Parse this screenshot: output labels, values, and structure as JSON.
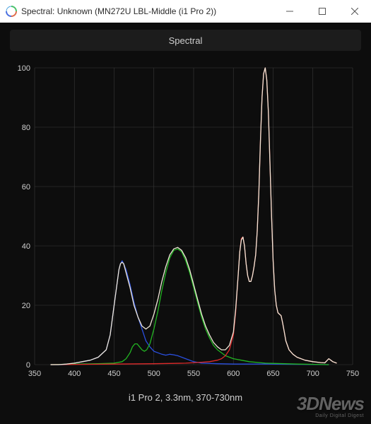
{
  "window": {
    "title": "Spectral: Unknown (MN272U LBL-Middle (i1 Pro 2))"
  },
  "tabs": {
    "spectral_label": "Spectral"
  },
  "footer": {
    "label": "i1 Pro 2, 3.3nm, 370-730nm"
  },
  "watermark": {
    "brand": "3DNews",
    "tagline": "Daily Digital Digest"
  },
  "chart": {
    "background_color": "#0d0d0d",
    "grid_color": "#3a3a3a",
    "axis_color": "#cfcfcf",
    "tick_fontsize": 11,
    "xlim": [
      350,
      750
    ],
    "ylim": [
      0,
      100
    ],
    "xtick_step": 50,
    "ytick_step": 20,
    "line_width": 1.3,
    "series": [
      {
        "name": "blue",
        "color": "#2a4fe0",
        "points": [
          [
            370,
            0
          ],
          [
            380,
            0
          ],
          [
            390,
            0
          ],
          [
            400,
            0.5
          ],
          [
            410,
            1
          ],
          [
            420,
            1.5
          ],
          [
            430,
            2.5
          ],
          [
            440,
            5
          ],
          [
            445,
            10
          ],
          [
            450,
            20
          ],
          [
            453,
            26
          ],
          [
            456,
            32
          ],
          [
            458,
            34
          ],
          [
            460,
            35
          ],
          [
            462,
            34
          ],
          [
            465,
            32
          ],
          [
            470,
            27
          ],
          [
            475,
            21
          ],
          [
            480,
            16
          ],
          [
            485,
            12
          ],
          [
            490,
            8
          ],
          [
            495,
            6
          ],
          [
            500,
            4.5
          ],
          [
            505,
            4
          ],
          [
            510,
            3.5
          ],
          [
            515,
            3.2
          ],
          [
            520,
            3.5
          ],
          [
            525,
            3.3
          ],
          [
            530,
            3
          ],
          [
            540,
            2
          ],
          [
            550,
            1
          ],
          [
            560,
            0.5
          ],
          [
            580,
            0.3
          ],
          [
            600,
            0.2
          ],
          [
            620,
            0.2
          ],
          [
            640,
            0.2
          ],
          [
            680,
            0.1
          ],
          [
            720,
            0
          ]
        ]
      },
      {
        "name": "green",
        "color": "#22b522",
        "points": [
          [
            370,
            0
          ],
          [
            400,
            0.2
          ],
          [
            430,
            0.3
          ],
          [
            450,
            0.5
          ],
          [
            460,
            1
          ],
          [
            465,
            2
          ],
          [
            470,
            4
          ],
          [
            473,
            6
          ],
          [
            476,
            7
          ],
          [
            479,
            7
          ],
          [
            482,
            6
          ],
          [
            485,
            5
          ],
          [
            488,
            4.5
          ],
          [
            491,
            5
          ],
          [
            495,
            7
          ],
          [
            500,
            12
          ],
          [
            505,
            18
          ],
          [
            510,
            25
          ],
          [
            515,
            31
          ],
          [
            520,
            36
          ],
          [
            525,
            38.5
          ],
          [
            530,
            39
          ],
          [
            535,
            38
          ],
          [
            540,
            35
          ],
          [
            545,
            31
          ],
          [
            550,
            26
          ],
          [
            555,
            21
          ],
          [
            560,
            16
          ],
          [
            565,
            12
          ],
          [
            570,
            9
          ],
          [
            575,
            6.5
          ],
          [
            580,
            5
          ],
          [
            590,
            3
          ],
          [
            600,
            2
          ],
          [
            610,
            1.5
          ],
          [
            620,
            1
          ],
          [
            640,
            0.5
          ],
          [
            680,
            0.2
          ],
          [
            720,
            0
          ]
        ]
      },
      {
        "name": "red",
        "color": "#e02a2a",
        "points": [
          [
            370,
            0
          ],
          [
            450,
            0.2
          ],
          [
            500,
            0.3
          ],
          [
            540,
            0.5
          ],
          [
            560,
            0.8
          ],
          [
            570,
            1
          ],
          [
            580,
            1.5
          ],
          [
            585,
            2
          ],
          [
            590,
            3
          ],
          [
            595,
            5
          ],
          [
            600,
            10
          ],
          [
            603,
            18
          ],
          [
            606,
            30
          ],
          [
            608,
            38
          ],
          [
            610,
            42.5
          ],
          [
            612,
            43
          ],
          [
            614,
            40
          ],
          [
            616,
            34
          ],
          [
            618,
            30
          ],
          [
            620,
            28
          ],
          [
            622,
            28
          ],
          [
            624,
            30
          ],
          [
            626,
            33
          ],
          [
            628,
            37
          ],
          [
            630,
            45
          ],
          [
            632,
            58
          ],
          [
            634,
            75
          ],
          [
            636,
            90
          ],
          [
            638,
            98
          ],
          [
            640,
            100
          ],
          [
            642,
            96
          ],
          [
            644,
            85
          ],
          [
            646,
            68
          ],
          [
            648,
            50
          ],
          [
            650,
            35
          ],
          [
            652,
            25
          ],
          [
            654,
            20
          ],
          [
            656,
            17.5
          ],
          [
            658,
            17
          ],
          [
            660,
            16.5
          ],
          [
            662,
            14
          ],
          [
            664,
            11
          ],
          [
            666,
            8
          ],
          [
            670,
            5
          ],
          [
            675,
            3.5
          ],
          [
            680,
            2.5
          ],
          [
            690,
            1.5
          ],
          [
            700,
            1
          ],
          [
            710,
            0.7
          ],
          [
            715,
            0.6
          ],
          [
            720,
            2
          ],
          [
            725,
            1
          ],
          [
            730,
            0.5
          ]
        ]
      },
      {
        "name": "white",
        "color": "#f0e8d8",
        "points": [
          [
            370,
            0
          ],
          [
            380,
            0
          ],
          [
            390,
            0.2
          ],
          [
            400,
            0.5
          ],
          [
            410,
            1
          ],
          [
            420,
            1.5
          ],
          [
            430,
            2.5
          ],
          [
            440,
            5
          ],
          [
            445,
            10
          ],
          [
            450,
            20
          ],
          [
            453,
            26
          ],
          [
            456,
            32
          ],
          [
            458,
            34
          ],
          [
            460,
            34.5
          ],
          [
            462,
            34
          ],
          [
            465,
            31
          ],
          [
            470,
            26
          ],
          [
            475,
            20
          ],
          [
            480,
            16
          ],
          [
            485,
            13
          ],
          [
            490,
            12
          ],
          [
            495,
            13
          ],
          [
            500,
            17
          ],
          [
            505,
            22
          ],
          [
            510,
            28
          ],
          [
            515,
            33
          ],
          [
            520,
            37
          ],
          [
            525,
            39
          ],
          [
            530,
            39.5
          ],
          [
            535,
            38.5
          ],
          [
            540,
            36
          ],
          [
            545,
            32
          ],
          [
            550,
            27
          ],
          [
            555,
            22
          ],
          [
            560,
            17
          ],
          [
            565,
            13
          ],
          [
            570,
            10
          ],
          [
            575,
            7.5
          ],
          [
            580,
            6
          ],
          [
            585,
            5
          ],
          [
            590,
            5
          ],
          [
            595,
            6.5
          ],
          [
            600,
            11
          ],
          [
            603,
            19
          ],
          [
            606,
            30
          ],
          [
            608,
            38
          ],
          [
            610,
            42
          ],
          [
            612,
            43
          ],
          [
            614,
            40
          ],
          [
            616,
            34
          ],
          [
            618,
            30
          ],
          [
            620,
            28
          ],
          [
            622,
            28
          ],
          [
            624,
            30
          ],
          [
            626,
            33
          ],
          [
            628,
            37
          ],
          [
            630,
            45
          ],
          [
            632,
            58
          ],
          [
            634,
            75
          ],
          [
            636,
            90
          ],
          [
            638,
            98
          ],
          [
            640,
            100
          ],
          [
            642,
            96
          ],
          [
            644,
            85
          ],
          [
            646,
            68
          ],
          [
            648,
            50
          ],
          [
            650,
            35
          ],
          [
            652,
            25
          ],
          [
            654,
            20
          ],
          [
            656,
            17.5
          ],
          [
            658,
            17
          ],
          [
            660,
            16.5
          ],
          [
            662,
            14
          ],
          [
            664,
            11
          ],
          [
            666,
            8
          ],
          [
            670,
            5
          ],
          [
            675,
            3.5
          ],
          [
            680,
            2.5
          ],
          [
            690,
            1.5
          ],
          [
            700,
            1
          ],
          [
            710,
            0.7
          ],
          [
            715,
            0.6
          ],
          [
            720,
            2
          ],
          [
            725,
            1
          ],
          [
            730,
            0.5
          ]
        ]
      }
    ]
  }
}
